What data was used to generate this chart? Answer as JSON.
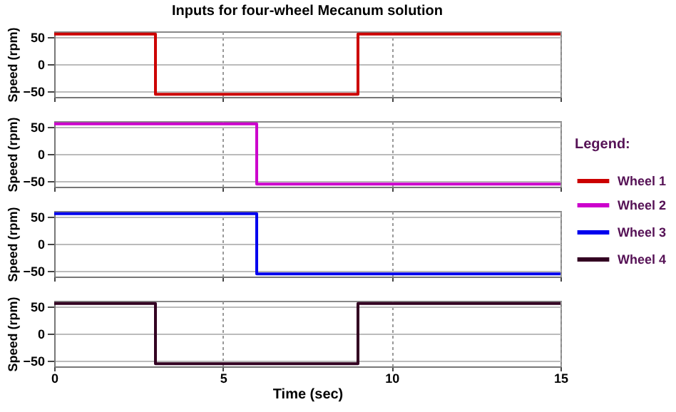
{
  "chart_data": [
    {
      "type": "line",
      "title": "Inputs for four-wheel Mecanum solution",
      "ylabel": "Speed (rpm)",
      "xlim": [
        0,
        15
      ],
      "xticks": [
        0,
        5,
        10,
        15
      ],
      "ylim": [
        -60,
        60
      ],
      "yticks": [
        -50,
        0,
        50
      ],
      "grid": true,
      "tick_labels": "y",
      "legend": "right",
      "legend_title": "Legend:",
      "series": [
        {
          "name": "Wheel 1",
          "color": "#cc0000",
          "x": [
            0,
            3,
            3,
            9,
            9,
            15
          ],
          "values": [
            55,
            55,
            -55,
            -55,
            55,
            55
          ]
        }
      ]
    },
    {
      "type": "line",
      "ylabel": "Speed (rpm)",
      "xlim": [
        0,
        15
      ],
      "xticks": [
        0,
        5,
        10,
        15
      ],
      "ylim": [
        -60,
        60
      ],
      "yticks": [
        -50,
        0,
        50
      ],
      "grid": true,
      "tick_labels": "y",
      "legend": "right",
      "series": [
        {
          "name": "Wheel 2",
          "color": "#cc00cc",
          "x": [
            0,
            6,
            6,
            15
          ],
          "values": [
            55,
            55,
            -55,
            -55
          ]
        }
      ]
    },
    {
      "type": "line",
      "ylabel": "Speed (rpm)",
      "xlim": [
        0,
        15
      ],
      "xticks": [
        0,
        5,
        10,
        15
      ],
      "ylim": [
        -60,
        60
      ],
      "yticks": [
        -50,
        0,
        50
      ],
      "grid": true,
      "tick_labels": "y",
      "legend": "right",
      "series": [
        {
          "name": "Wheel 3",
          "color": "#0000ee",
          "x": [
            0,
            6,
            6,
            15
          ],
          "values": [
            55,
            55,
            -55,
            -55
          ]
        }
      ]
    },
    {
      "type": "line",
      "xlabel": "Time (sec)",
      "ylabel": "Speed (rpm)",
      "xlim": [
        0,
        15
      ],
      "xticks": [
        0,
        5,
        10,
        15
      ],
      "ylim": [
        -60,
        60
      ],
      "yticks": [
        -50,
        0,
        50
      ],
      "grid": true,
      "legend": "right",
      "series": [
        {
          "name": "Wheel 4",
          "color": "#330022",
          "x": [
            0,
            3,
            3,
            9,
            9,
            15
          ],
          "values": [
            55,
            55,
            -55,
            -55,
            55,
            55
          ]
        }
      ]
    }
  ]
}
